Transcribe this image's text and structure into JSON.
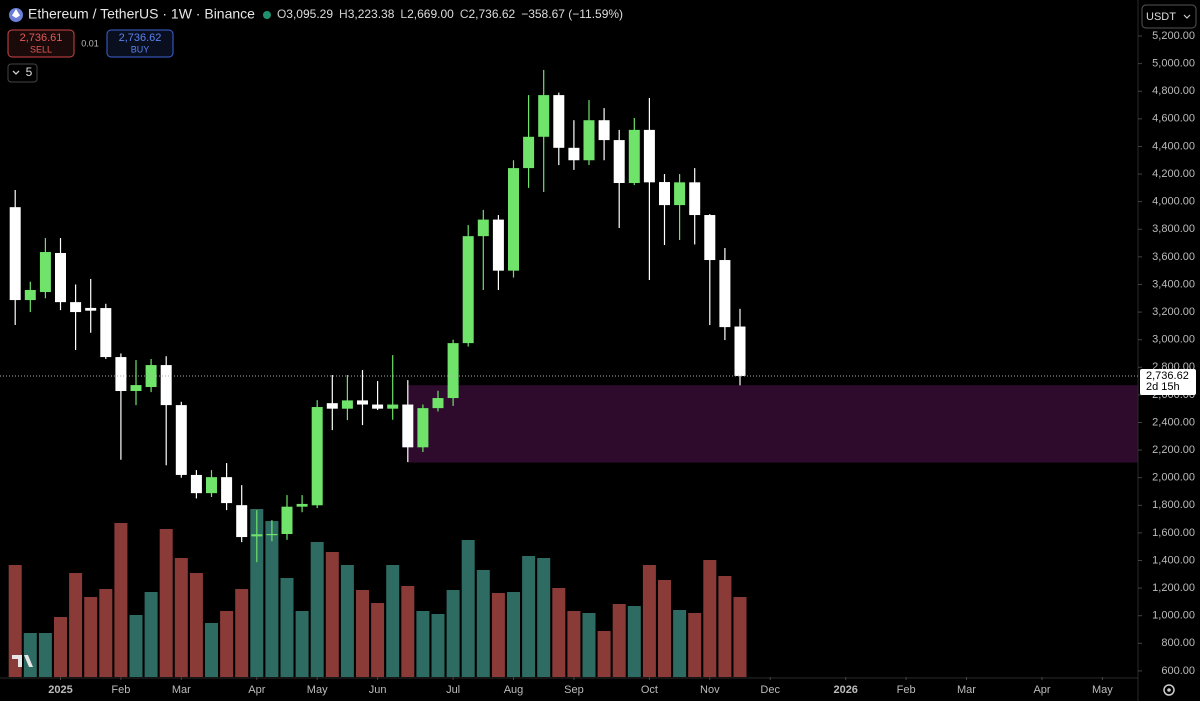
{
  "chart_data": {
    "type": "candlestick",
    "title": "Ethereum / TetherUS · 1W · Binance",
    "ohlc_legend": [
      {
        "key": "O",
        "label": "3,095.29"
      },
      {
        "key": "H",
        "label": "3,223.38"
      },
      {
        "key": "L",
        "label": "2,669.00"
      },
      {
        "key": "C",
        "label": "2,736.62"
      }
    ],
    "change_label": "−358.67 (−11.59%)",
    "sell": {
      "price": "2,736.61",
      "label": "SELL"
    },
    "spread": "0.01",
    "buy": {
      "price": "2,736.62",
      "label": "BUY"
    },
    "indicator_count": "5",
    "currency": "USDT",
    "last_price": {
      "value": 2736.62,
      "label": "2,736.62",
      "countdown": "2d 15h"
    },
    "up_color": "#6fe36a",
    "down_color": "#ffffff",
    "volume_up_color": "#2d6b63",
    "volume_down_color": "#8b3b37",
    "zone": {
      "low": 2110,
      "high": 2670,
      "start": 26,
      "color": "#2e0a2c"
    },
    "open": [
      3960,
      3287,
      3345,
      3628,
      3272,
      3230,
      3229,
      2874,
      2628,
      2657,
      2816,
      2526,
      2020,
      1888,
      2004,
      1801,
      1575,
      1585,
      1592,
      1790,
      1800,
      2540,
      2500,
      2560,
      2530,
      2500,
      2530,
      2220,
      2504,
      2577,
      2975,
      3750,
      3870,
      3500,
      4243,
      4470,
      4772,
      4390,
      4300,
      4590,
      4446,
      4135,
      4520,
      4142,
      3975,
      4140,
      3903,
      3577,
      3095.29
    ],
    "high": [
      4084,
      3420,
      3736,
      3736,
      3400,
      3440,
      3260,
      2900,
      2852,
      2860,
      2880,
      2550,
      2055,
      2055,
      2106,
      1946,
      1765,
      1693,
      1874,
      1874,
      2562,
      2744,
      2744,
      2780,
      2700,
      2888,
      2707,
      2530,
      2630,
      3000,
      3830,
      3940,
      3903,
      4300,
      4772,
      4954,
      4790,
      4590,
      4736,
      4678,
      4520,
      4606,
      4751,
      4200,
      4200,
      4243,
      3910,
      3664,
      3223.38
    ],
    "low": [
      3106,
      3200,
      3300,
      3214,
      2925,
      3050,
      2860,
      2130,
      2526,
      2620,
      2090,
      2000,
      1850,
      1860,
      1765,
      1533,
      1388,
      1540,
      1550,
      1750,
      1780,
      2345,
      2417,
      2381,
      2490,
      2420,
      2113,
      2186,
      2480,
      2520,
      2950,
      3360,
      3360,
      3450,
      4100,
      4070,
      4265,
      4230,
      4265,
      4300,
      3809,
      4120,
      3432,
      3686,
      3722,
      3690,
      3106,
      2997,
      2669
    ],
    "close": [
      3287,
      3360,
      3635,
      3272,
      3200,
      3210,
      2874,
      2628,
      2671,
      2816,
      2526,
      2020,
      1888,
      2004,
      1816,
      1570,
      1590,
      1592,
      1790,
      1810,
      2512,
      2500,
      2560,
      2530,
      2500,
      2530,
      2220,
      2504,
      2577,
      2975,
      3750,
      3870,
      3500,
      4243,
      4470,
      4772,
      4390,
      4300,
      4590,
      4446,
      4135,
      4520,
      4140,
      3975,
      4140,
      3903,
      3577,
      3091,
      2736.62
    ],
    "volume": [
      112,
      44,
      44,
      60,
      104,
      80,
      88,
      154,
      62,
      85,
      148,
      119,
      104,
      54,
      66,
      88,
      168,
      156,
      99,
      66,
      135,
      125,
      112,
      87,
      74,
      112,
      91,
      66,
      63,
      87,
      137,
      107,
      84,
      85,
      121,
      119,
      89,
      66,
      64,
      46,
      73,
      71,
      112,
      97,
      67,
      64,
      117,
      101,
      80
    ],
    "ylim": [
      556,
      5461
    ],
    "yticks": [
      {
        "value": 600,
        "label": "600.00"
      },
      {
        "value": 800,
        "label": "800.00"
      },
      {
        "value": 1000,
        "label": "1,000.00"
      },
      {
        "value": 1200,
        "label": "1,200.00"
      },
      {
        "value": 1400,
        "label": "1,400.00"
      },
      {
        "value": 1600,
        "label": "1,600.00"
      },
      {
        "value": 1800,
        "label": "1,800.00"
      },
      {
        "value": 2000,
        "label": "2,000.00"
      },
      {
        "value": 2200,
        "label": "2,200.00"
      },
      {
        "value": 2400,
        "label": "2,400.00"
      },
      {
        "value": 2600,
        "label": "2,600.00"
      },
      {
        "value": 2800,
        "label": "2,800.00"
      },
      {
        "value": 3000,
        "label": "3,000.00"
      },
      {
        "value": 3200,
        "label": "3,200.00"
      },
      {
        "value": 3400,
        "label": "3,400.00"
      },
      {
        "value": 3600,
        "label": "3,600.00"
      },
      {
        "value": 3800,
        "label": "3,800.00"
      },
      {
        "value": 4000,
        "label": "4,000.00"
      },
      {
        "value": 4200,
        "label": "4,200.00"
      },
      {
        "value": 4400,
        "label": "4,400.00"
      },
      {
        "value": 4600,
        "label": "4,600.00"
      },
      {
        "value": 4800,
        "label": "4,800.00"
      },
      {
        "value": 5000,
        "label": "5,000.00"
      },
      {
        "value": 5200,
        "label": "5,200.00"
      }
    ],
    "xticks": [
      {
        "value": 3,
        "label": "2025"
      },
      {
        "value": 7,
        "label": "Feb"
      },
      {
        "value": 11,
        "label": "Mar"
      },
      {
        "value": 16,
        "label": "Apr"
      },
      {
        "value": 20,
        "label": "May"
      },
      {
        "value": 24,
        "label": "Jun"
      },
      {
        "value": 29,
        "label": "Jul"
      },
      {
        "value": 33,
        "label": "Aug"
      },
      {
        "value": 37,
        "label": "Sep"
      },
      {
        "value": 42,
        "label": "Oct"
      },
      {
        "value": 46,
        "label": "Nov"
      },
      {
        "value": 50,
        "label": "Dec"
      },
      {
        "value": 55,
        "label": "2026"
      },
      {
        "value": 59,
        "label": "Feb"
      },
      {
        "value": 63,
        "label": "Mar"
      },
      {
        "value": 68,
        "label": "Apr"
      },
      {
        "value": 72,
        "label": "May"
      }
    ]
  }
}
